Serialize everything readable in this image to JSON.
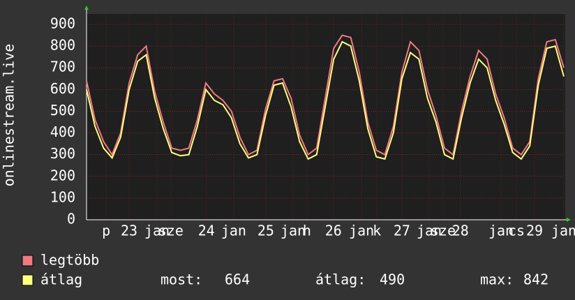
{
  "chart_data": {
    "type": "line",
    "y_label": "onlinestream.live",
    "x": [
      0,
      3,
      6,
      9,
      12,
      15,
      18,
      21,
      24,
      27,
      30,
      33,
      36,
      39,
      42,
      45,
      48,
      51,
      54,
      57,
      60,
      63,
      66,
      69,
      72,
      75,
      78,
      81,
      84,
      87,
      90,
      93,
      96,
      99,
      102,
      105,
      108,
      111,
      114,
      117,
      120,
      123,
      126,
      129,
      132,
      135,
      138,
      141,
      144,
      147,
      150,
      153,
      156,
      159,
      162,
      165,
      168
    ],
    "xlim": [
      0,
      168
    ],
    "xticks": [
      {
        "value": 6.9,
        "label": "p"
      },
      {
        "value": 15,
        "label": "23"
      },
      {
        "value": 24.8,
        "label": "jan"
      },
      {
        "value": 29.7,
        "label": "sze"
      },
      {
        "value": 42.2,
        "label": "24"
      },
      {
        "value": 51.8,
        "label": "jan"
      },
      {
        "value": 63.1,
        "label": "25"
      },
      {
        "value": 72.7,
        "label": "jan"
      },
      {
        "value": 77.6,
        "label": "h"
      },
      {
        "value": 86.9,
        "label": "26"
      },
      {
        "value": 96.8,
        "label": "jan"
      },
      {
        "value": 102.2,
        "label": "k"
      },
      {
        "value": 111,
        "label": "27"
      },
      {
        "value": 120.6,
        "label": "jan"
      },
      {
        "value": 125.5,
        "label": "sze"
      },
      {
        "value": 131.6,
        "label": "28"
      },
      {
        "value": 145.9,
        "label": "jan"
      },
      {
        "value": 151.3,
        "label": "cs"
      },
      {
        "value": 157.7,
        "label": "29"
      },
      {
        "value": 168,
        "label": "jan"
      }
    ],
    "ylim": [
      0,
      900
    ],
    "yticks": [
      0,
      100,
      200,
      300,
      400,
      500,
      600,
      700,
      800,
      900
    ],
    "grid": true,
    "series": [
      {
        "name": "legtöbb",
        "color": "#f07a80",
        "values": [
          640,
          460,
          360,
          300,
          400,
          630,
          760,
          800,
          590,
          450,
          330,
          320,
          330,
          460,
          630,
          580,
          550,
          500,
          380,
          300,
          320,
          510,
          640,
          650,
          560,
          390,
          300,
          330,
          560,
          790,
          850,
          840,
          680,
          450,
          320,
          300,
          430,
          680,
          820,
          780,
          600,
          480,
          330,
          300,
          500,
          660,
          780,
          740,
          580,
          470,
          330,
          300,
          360,
          650,
          820,
          830,
          700
        ]
      },
      {
        "name": "átlag",
        "color": "#ffff80",
        "values": [
          600,
          430,
          330,
          285,
          380,
          600,
          730,
          760,
          560,
          420,
          310,
          295,
          300,
          430,
          600,
          550,
          530,
          470,
          350,
          285,
          300,
          480,
          620,
          630,
          520,
          360,
          280,
          300,
          520,
          740,
          820,
          800,
          640,
          420,
          290,
          280,
          400,
          650,
          770,
          740,
          560,
          450,
          300,
          280,
          470,
          630,
          740,
          700,
          550,
          440,
          310,
          280,
          340,
          620,
          790,
          800,
          660
        ]
      }
    ],
    "stats": [
      {
        "label": "most:",
        "value": 664
      },
      {
        "label": "átlag:",
        "value": 490
      },
      {
        "label": "max:",
        "value": 842
      }
    ]
  }
}
